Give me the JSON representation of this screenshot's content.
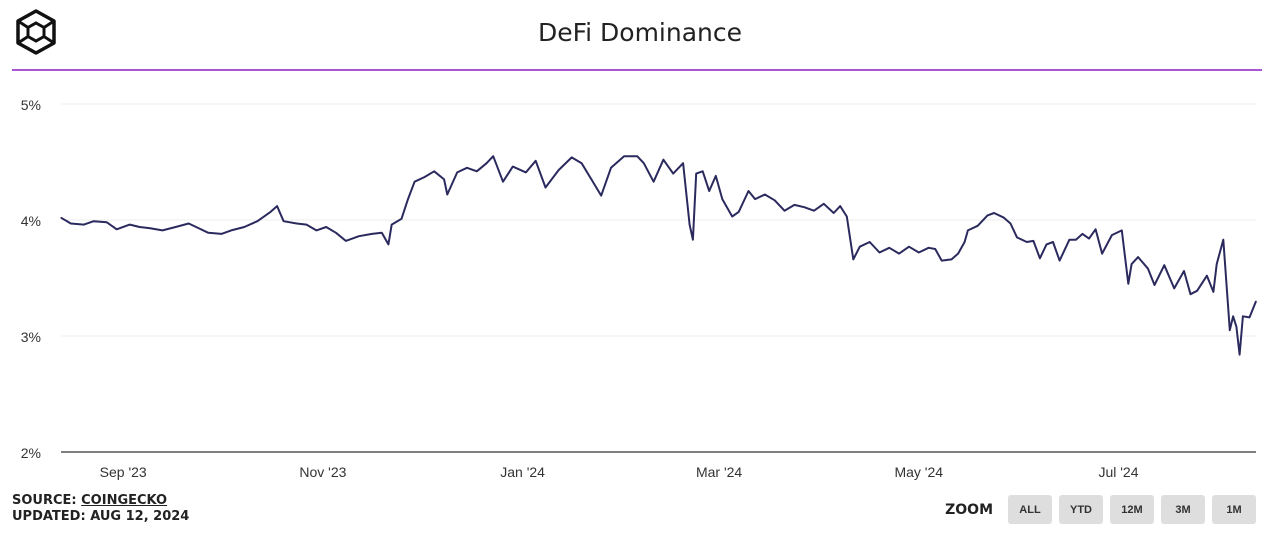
{
  "header": {
    "title": "DeFi Dominance",
    "logo_icon": "cube-logo-icon",
    "accent_color": "#a855d6"
  },
  "footer": {
    "source_prefix": "SOURCE: ",
    "source_link": "COINGECKO",
    "updated": "UPDATED: AUG 12, 2024"
  },
  "zoom": {
    "label": "ZOOM",
    "buttons": [
      "ALL",
      "YTD",
      "12M",
      "3M",
      "1M"
    ]
  },
  "chart_data": {
    "type": "line",
    "title": "DeFi Dominance",
    "xlabel": "",
    "ylabel": "",
    "ylim": [
      2,
      5
    ],
    "y_ticks": [
      2,
      3,
      4,
      5
    ],
    "y_tick_labels": [
      "2%",
      "3%",
      "4%",
      "5%"
    ],
    "x_range": [
      "2023-08-13",
      "2024-08-12"
    ],
    "x_ticks": [
      "2023-09-01",
      "2023-11-01",
      "2024-01-01",
      "2024-03-01",
      "2024-05-01",
      "2024-07-01"
    ],
    "x_tick_labels": [
      "Sep '23",
      "Nov '23",
      "Jan '24",
      "Mar '24",
      "May '24",
      "Jul '24"
    ],
    "grid": "horizontal",
    "line_color": "#2b2a5e",
    "series": [
      {
        "points": [
          [
            "2023-08-13",
            4.02
          ],
          [
            "2023-08-16",
            3.97
          ],
          [
            "2023-08-20",
            3.96
          ],
          [
            "2023-08-23",
            3.99
          ],
          [
            "2023-08-27",
            3.98
          ],
          [
            "2023-08-30",
            3.92
          ],
          [
            "2023-09-03",
            3.96
          ],
          [
            "2023-09-06",
            3.94
          ],
          [
            "2023-09-09",
            3.93
          ],
          [
            "2023-09-13",
            3.91
          ],
          [
            "2023-09-17",
            3.94
          ],
          [
            "2023-09-21",
            3.97
          ],
          [
            "2023-09-24",
            3.93
          ],
          [
            "2023-09-27",
            3.89
          ],
          [
            "2023-10-01",
            3.88
          ],
          [
            "2023-10-04",
            3.91
          ],
          [
            "2023-10-08",
            3.94
          ],
          [
            "2023-10-12",
            3.99
          ],
          [
            "2023-10-16",
            4.07
          ],
          [
            "2023-10-18",
            4.12
          ],
          [
            "2023-10-20",
            3.99
          ],
          [
            "2023-10-24",
            3.97
          ],
          [
            "2023-10-27",
            3.96
          ],
          [
            "2023-10-30",
            3.91
          ],
          [
            "2023-11-02",
            3.94
          ],
          [
            "2023-11-05",
            3.89
          ],
          [
            "2023-11-08",
            3.82
          ],
          [
            "2023-11-12",
            3.86
          ],
          [
            "2023-11-16",
            3.88
          ],
          [
            "2023-11-19",
            3.89
          ],
          [
            "2023-11-21",
            3.79
          ],
          [
            "2023-11-22",
            3.96
          ],
          [
            "2023-11-25",
            4.01
          ],
          [
            "2023-11-27",
            4.18
          ],
          [
            "2023-11-29",
            4.33
          ],
          [
            "2023-12-02",
            4.37
          ],
          [
            "2023-12-05",
            4.42
          ],
          [
            "2023-12-08",
            4.35
          ],
          [
            "2023-12-09",
            4.22
          ],
          [
            "2023-12-12",
            4.41
          ],
          [
            "2023-12-15",
            4.45
          ],
          [
            "2023-12-18",
            4.42
          ],
          [
            "2023-12-21",
            4.49
          ],
          [
            "2023-12-23",
            4.55
          ],
          [
            "2023-12-26",
            4.33
          ],
          [
            "2023-12-29",
            4.46
          ],
          [
            "2024-01-02",
            4.41
          ],
          [
            "2024-01-05",
            4.51
          ],
          [
            "2024-01-08",
            4.28
          ],
          [
            "2024-01-12",
            4.43
          ],
          [
            "2024-01-16",
            4.54
          ],
          [
            "2024-01-19",
            4.49
          ],
          [
            "2024-01-22",
            4.35
          ],
          [
            "2024-01-25",
            4.21
          ],
          [
            "2024-01-28",
            4.45
          ],
          [
            "2024-02-01",
            4.55
          ],
          [
            "2024-02-05",
            4.55
          ],
          [
            "2024-02-07",
            4.49
          ],
          [
            "2024-02-10",
            4.33
          ],
          [
            "2024-02-13",
            4.52
          ],
          [
            "2024-02-16",
            4.4
          ],
          [
            "2024-02-19",
            4.49
          ],
          [
            "2024-02-21",
            3.96
          ],
          [
            "2024-02-22",
            3.83
          ],
          [
            "2024-02-23",
            4.4
          ],
          [
            "2024-02-25",
            4.42
          ],
          [
            "2024-02-27",
            4.25
          ],
          [
            "2024-02-29",
            4.38
          ],
          [
            "2024-03-02",
            4.18
          ],
          [
            "2024-03-05",
            4.03
          ],
          [
            "2024-03-07",
            4.07
          ],
          [
            "2024-03-10",
            4.25
          ],
          [
            "2024-03-12",
            4.18
          ],
          [
            "2024-03-15",
            4.22
          ],
          [
            "2024-03-18",
            4.17
          ],
          [
            "2024-03-21",
            4.08
          ],
          [
            "2024-03-24",
            4.13
          ],
          [
            "2024-03-27",
            4.11
          ],
          [
            "2024-03-30",
            4.08
          ],
          [
            "2024-04-02",
            4.14
          ],
          [
            "2024-04-05",
            4.06
          ],
          [
            "2024-04-07",
            4.12
          ],
          [
            "2024-04-09",
            4.03
          ],
          [
            "2024-04-11",
            3.66
          ],
          [
            "2024-04-13",
            3.77
          ],
          [
            "2024-04-16",
            3.81
          ],
          [
            "2024-04-19",
            3.72
          ],
          [
            "2024-04-22",
            3.76
          ],
          [
            "2024-04-25",
            3.71
          ],
          [
            "2024-04-28",
            3.77
          ],
          [
            "2024-05-01",
            3.72
          ],
          [
            "2024-05-04",
            3.76
          ],
          [
            "2024-05-06",
            3.75
          ],
          [
            "2024-05-08",
            3.65
          ],
          [
            "2024-05-11",
            3.66
          ],
          [
            "2024-05-13",
            3.71
          ],
          [
            "2024-05-15",
            3.81
          ],
          [
            "2024-05-16",
            3.91
          ],
          [
            "2024-05-19",
            3.95
          ],
          [
            "2024-05-22",
            4.04
          ],
          [
            "2024-05-24",
            4.06
          ],
          [
            "2024-05-27",
            4.02
          ],
          [
            "2024-05-29",
            3.97
          ],
          [
            "2024-05-31",
            3.85
          ],
          [
            "2024-06-03",
            3.81
          ],
          [
            "2024-06-05",
            3.82
          ],
          [
            "2024-06-07",
            3.67
          ],
          [
            "2024-06-09",
            3.79
          ],
          [
            "2024-06-11",
            3.81
          ],
          [
            "2024-06-13",
            3.65
          ],
          [
            "2024-06-16",
            3.83
          ],
          [
            "2024-06-18",
            3.83
          ],
          [
            "2024-06-20",
            3.88
          ],
          [
            "2024-06-22",
            3.84
          ],
          [
            "2024-06-24",
            3.92
          ],
          [
            "2024-06-26",
            3.71
          ],
          [
            "2024-06-29",
            3.87
          ],
          [
            "2024-07-02",
            3.91
          ],
          [
            "2024-07-04",
            3.45
          ],
          [
            "2024-07-05",
            3.62
          ],
          [
            "2024-07-07",
            3.68
          ],
          [
            "2024-07-10",
            3.58
          ],
          [
            "2024-07-12",
            3.44
          ],
          [
            "2024-07-15",
            3.61
          ],
          [
            "2024-07-18",
            3.41
          ],
          [
            "2024-07-21",
            3.56
          ],
          [
            "2024-07-23",
            3.36
          ],
          [
            "2024-07-25",
            3.39
          ],
          [
            "2024-07-28",
            3.52
          ],
          [
            "2024-07-30",
            3.38
          ],
          [
            "2024-07-31",
            3.62
          ],
          [
            "2024-08-02",
            3.83
          ],
          [
            "2024-08-04",
            3.05
          ],
          [
            "2024-08-05",
            3.17
          ],
          [
            "2024-08-06",
            3.08
          ],
          [
            "2024-08-07",
            2.84
          ],
          [
            "2024-08-08",
            3.17
          ],
          [
            "2024-08-10",
            3.16
          ],
          [
            "2024-08-12",
            3.3
          ]
        ]
      }
    ]
  }
}
